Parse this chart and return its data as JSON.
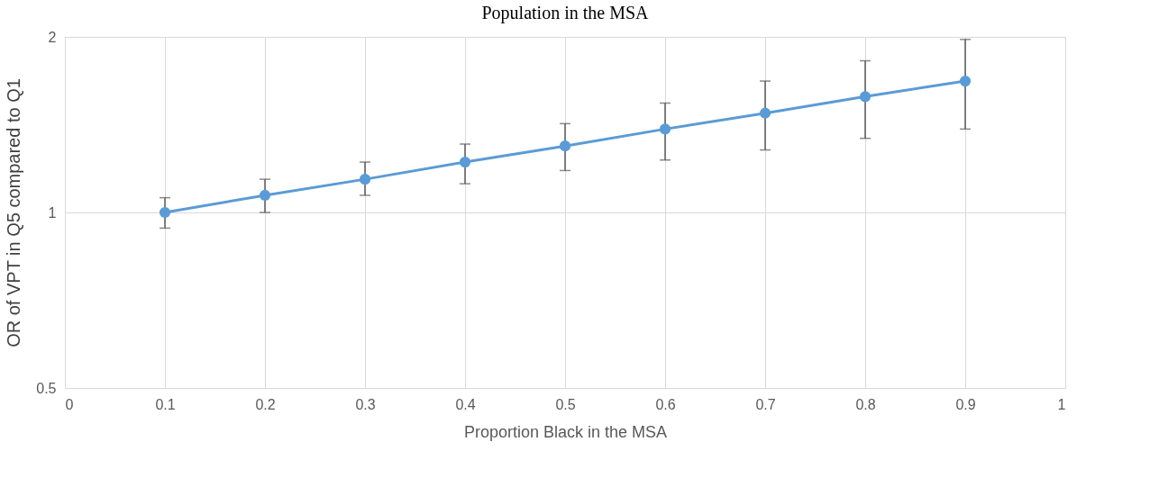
{
  "chart_data": {
    "type": "line",
    "title": "Population in the MSA",
    "xlabel": "Proportion Black in the MSA",
    "ylabel": "OR of VPT in Q5 compared to Q1",
    "x": [
      0.1,
      0.2,
      0.3,
      0.4,
      0.5,
      0.6,
      0.7,
      0.8,
      0.9
    ],
    "series": [
      {
        "color": "#5b9bd5",
        "values": [
          1.0,
          1.07,
          1.14,
          1.22,
          1.3,
          1.39,
          1.48,
          1.58,
          1.68
        ],
        "errors": [
          [
            0.94,
            1.06
          ],
          [
            1.0,
            1.14
          ],
          [
            1.07,
            1.22
          ],
          [
            1.12,
            1.31
          ],
          [
            1.18,
            1.42
          ],
          [
            1.23,
            1.54
          ],
          [
            1.28,
            1.68
          ],
          [
            1.34,
            1.82
          ],
          [
            1.39,
            1.98
          ]
        ]
      }
    ],
    "xlim": [
      0,
      1
    ],
    "xticks": [
      0,
      0.1,
      0.2,
      0.3,
      0.4,
      0.5,
      0.6,
      0.7,
      0.8,
      0.9,
      1
    ],
    "ylim": [
      0.5,
      2
    ],
    "yticks": [
      0.5,
      1,
      2
    ],
    "log": "y",
    "grid": true,
    "marker": "circle",
    "line_style": "solid"
  }
}
